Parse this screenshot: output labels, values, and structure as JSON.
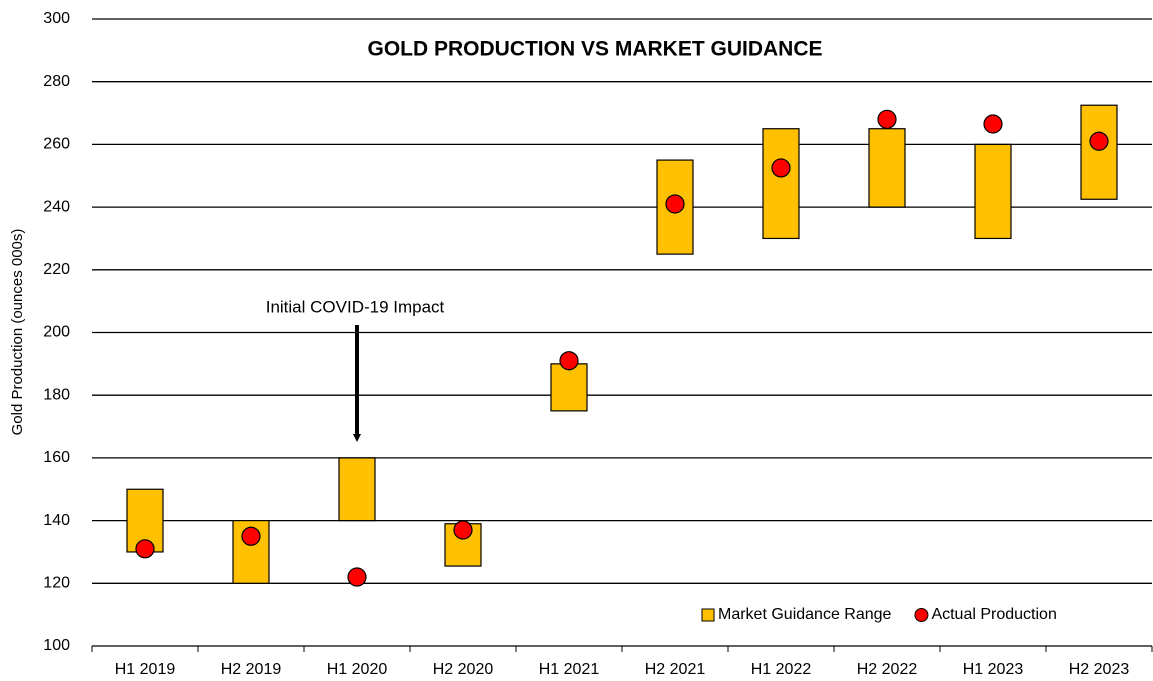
{
  "chart_data": {
    "type": "floating_bar",
    "title": "GOLD PRODUCTION VS MARKET GUIDANCE",
    "y_label": "Gold Production (ounces 000s)",
    "annotation": "Initial COVID-19 Impact",
    "categories": [
      "H1 2019",
      "H2 2019",
      "H1 2020",
      "H2 2020",
      "H1 2021",
      "H2 2021",
      "H1 2022",
      "H2 2022",
      "H1 2023",
      "H2 2023"
    ],
    "series": [
      {
        "name": "Market Guidance Range",
        "color": "#ffc000",
        "low": [
          130,
          120,
          140,
          125.5,
          175,
          225,
          230,
          240,
          230,
          242.5
        ],
        "high": [
          150,
          140,
          160,
          139,
          190,
          255,
          265,
          265,
          260,
          272.5
        ]
      },
      {
        "name": "Actual Production",
        "color": "#ff0000",
        "values": [
          131,
          135,
          122,
          137,
          191,
          241,
          252.5,
          268,
          266.5,
          261
        ]
      }
    ],
    "ylim": [
      100,
      300
    ],
    "yticks": [
      100,
      120,
      140,
      160,
      180,
      200,
      220,
      240,
      260,
      280,
      300
    ],
    "grid": true,
    "legend": "bottom-right"
  }
}
